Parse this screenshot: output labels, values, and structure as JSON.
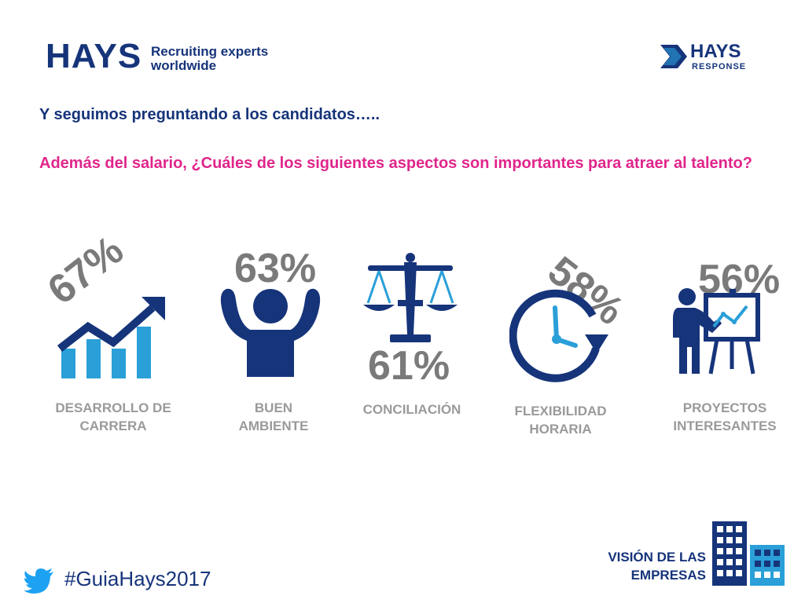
{
  "header": {
    "brand": "HAYS",
    "tagline_line1": "Recruiting experts",
    "tagline_line2": "worldwide",
    "response_brand": "HAYS",
    "response_sub": "RESPONSE"
  },
  "intro": "Y seguimos preguntando a los candidatos…..",
  "question": "Además del salario, ¿Cuáles de los siguientes aspectos son importantes para atraer al talento?",
  "items": [
    {
      "percent": "67%",
      "label_line1": "DESARROLLO DE",
      "label_line2": "CARRERA",
      "icon": "growth-chart-icon"
    },
    {
      "percent": "63%",
      "label_line1": "BUEN",
      "label_line2": "AMBIENTE",
      "icon": "person-raised-arms-icon"
    },
    {
      "percent": "61%",
      "label_line1": "CONCILIACIÓN",
      "label_line2": "",
      "icon": "balance-scale-icon"
    },
    {
      "percent": "58%",
      "label_line1": "FLEXIBILIDAD",
      "label_line2": "HORARIA",
      "icon": "clock-icon"
    },
    {
      "percent": "56%",
      "label_line1": "PROYECTOS",
      "label_line2": "INTERESANTES",
      "icon": "presenter-board-icon"
    }
  ],
  "footer": {
    "hashtag": "#GuiaHays2017",
    "vision_line1": "VISIÓN DE LAS",
    "vision_line2": "EMPRESAS"
  },
  "colors": {
    "navy": "#16347a",
    "magenta": "#e0258b",
    "gray": "#7a7a7a",
    "light_blue": "#2a9fd8",
    "twitter": "#1da1f2"
  }
}
